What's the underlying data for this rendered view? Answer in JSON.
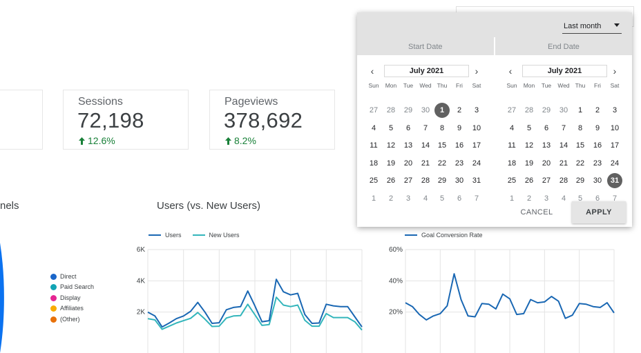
{
  "overflow_label": "nels",
  "scorecards": [
    {
      "label": "Sessions",
      "value": "72,198",
      "delta": "12.6%"
    },
    {
      "label": "Pageviews",
      "value": "378,692",
      "delta": "8.2%"
    }
  ],
  "users_chart": {
    "title": "Users (vs. New Users)"
  },
  "pie_legend": [
    {
      "label": "Direct",
      "color": "#1a66c9"
    },
    {
      "label": "Paid Search",
      "color": "#12a4b4"
    },
    {
      "label": "Display",
      "color": "#e52592"
    },
    {
      "label": "Affiliates",
      "color": "#f9ab00"
    },
    {
      "label": "(Other)",
      "color": "#e8710a"
    }
  ],
  "colors": {
    "pie_main": "#0b72f0",
    "users": "#1967b3",
    "new_users": "#32b5bb",
    "conversion": "#1967b3",
    "positive": "#188038"
  },
  "date_picker": {
    "range_select": "Last month",
    "start_label": "Start Date",
    "end_label": "End Date",
    "dow": [
      "Sun",
      "Mon",
      "Tue",
      "Wed",
      "Thu",
      "Fri",
      "Sat"
    ],
    "start": {
      "month_label": "July 2021",
      "days": [
        "27",
        "28",
        "29",
        "30",
        "1",
        "2",
        "3",
        "4",
        "5",
        "6",
        "7",
        "8",
        "9",
        "10",
        "11",
        "12",
        "13",
        "14",
        "15",
        "16",
        "17",
        "18",
        "19",
        "20",
        "21",
        "22",
        "23",
        "24",
        "25",
        "26",
        "27",
        "28",
        "29",
        "30",
        "31",
        "1",
        "2",
        "3",
        "4",
        "5",
        "6",
        "7"
      ],
      "first_current_index": 4,
      "last_current_index": 34,
      "selected_index": 4
    },
    "end": {
      "month_label": "July 2021",
      "days": [
        "27",
        "28",
        "29",
        "30",
        "1",
        "2",
        "3",
        "4",
        "5",
        "6",
        "7",
        "8",
        "9",
        "10",
        "11",
        "12",
        "13",
        "14",
        "15",
        "16",
        "17",
        "18",
        "19",
        "20",
        "21",
        "22",
        "23",
        "24",
        "25",
        "26",
        "27",
        "28",
        "29",
        "30",
        "31",
        "1",
        "2",
        "3",
        "4",
        "5",
        "6",
        "7"
      ],
      "first_current_index": 4,
      "last_current_index": 34,
      "selected_index": 34
    },
    "cancel_label": "CANCEL",
    "apply_label": "APPLY"
  },
  "chart_data": [
    {
      "type": "pie",
      "title": "",
      "categories": [
        "Direct",
        "Paid Search",
        "Display",
        "Affiliates",
        "(Other)"
      ]
    },
    {
      "type": "line",
      "title": "Users (vs. New Users)",
      "ylim": [
        0,
        6000
      ],
      "yticks": [
        {
          "value": 2000,
          "label": "2K"
        },
        {
          "value": 4000,
          "label": "4K"
        },
        {
          "value": 6000,
          "label": "6K"
        }
      ],
      "series": [
        {
          "name": "Users",
          "values": [
            2000,
            1750,
            1050,
            1300,
            1580,
            1750,
            2050,
            2620,
            2000,
            1280,
            1320,
            2150,
            2300,
            2350,
            3350,
            2400,
            1380,
            1450,
            4100,
            3300,
            3100,
            3200,
            1850,
            1280,
            1300,
            2500,
            2400,
            2350,
            2350,
            1700,
            1050
          ]
        },
        {
          "name": "New Users",
          "values": [
            1580,
            1500,
            900,
            1100,
            1300,
            1450,
            1600,
            1970,
            1550,
            1080,
            1100,
            1620,
            1750,
            1780,
            2500,
            1830,
            1150,
            1200,
            2950,
            2450,
            2350,
            2450,
            1480,
            1100,
            1100,
            1900,
            1650,
            1650,
            1650,
            1380,
            850
          ]
        }
      ]
    },
    {
      "type": "line",
      "title": "",
      "ylim": [
        0,
        60
      ],
      "yticks": [
        {
          "value": 20,
          "label": "20%"
        },
        {
          "value": 40,
          "label": "40%"
        },
        {
          "value": 60,
          "label": "60%"
        }
      ],
      "series": [
        {
          "name": "Goal Conversion Rate",
          "values": [
            26,
            23.5,
            18.5,
            15,
            17.5,
            19,
            24,
            44.5,
            28,
            17.5,
            17,
            25.5,
            25,
            22,
            31.5,
            28.5,
            18.5,
            19,
            28,
            26,
            26.5,
            30,
            27,
            16,
            18,
            25.5,
            25,
            23.5,
            23,
            26,
            19.5
          ]
        }
      ]
    }
  ]
}
